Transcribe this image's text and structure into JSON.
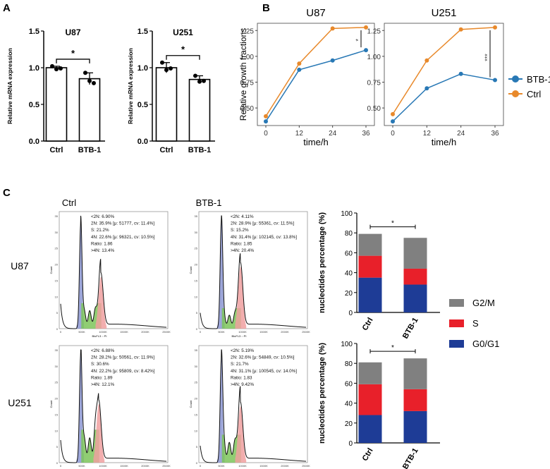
{
  "panel_labels": {
    "a": "A",
    "b": "B",
    "c": "C"
  },
  "colors": {
    "btb1_line": "#2878b5",
    "ctrl_line": "#e8892b",
    "g2m": "#808080",
    "s": "#e8202a",
    "g0g1": "#1e3c96",
    "hist_g1": "#8c96d2",
    "hist_s": "#7cc45a",
    "hist_g2": "#f0a0a0"
  },
  "panel_c_text": {
    "col_ctrl": "Ctrl",
    "col_btb1": "BTB-1",
    "row_u87": "U87",
    "row_u251": "U251",
    "hist_ylabel": "Count",
    "hist_xlabel": "BluFL3 :: PI",
    "hist_xticks": [
      "0",
      "500K",
      "1000K",
      "1500K",
      "2000K",
      "2500K"
    ],
    "hist_yticks": [
      "0",
      "5",
      "10",
      "15",
      "20",
      "25",
      "30",
      "35"
    ]
  },
  "chart_data": [
    {
      "id": "A_U87",
      "type": "bar",
      "title": "U87",
      "categories": [
        "Ctrl",
        "BTB-1"
      ],
      "values": [
        1.0,
        0.85
      ],
      "errors": [
        0.02,
        0.08
      ],
      "points": [
        [
          1.02,
          0.98,
          0.99
        ],
        [
          0.93,
          0.82,
          0.79
        ]
      ],
      "ylabel": "Relative mRNA expression",
      "ylim": [
        0,
        1.5
      ],
      "yticks": [
        "0.0",
        "0.5",
        "1.0",
        "1.5"
      ],
      "significance": "*"
    },
    {
      "id": "A_U251",
      "type": "bar",
      "title": "U251",
      "categories": [
        "Ctrl",
        "BTB-1"
      ],
      "values": [
        1.0,
        0.84
      ],
      "errors": [
        0.07,
        0.05
      ],
      "points": [
        [
          1.07,
          0.97,
          0.99
        ],
        [
          0.89,
          0.81,
          0.82
        ]
      ],
      "ylabel": "Relative mRNA expression",
      "ylim": [
        0,
        1.5
      ],
      "yticks": [
        "0.0",
        "0.5",
        "1.0",
        "1.5"
      ],
      "significance": "*"
    },
    {
      "id": "B_U87",
      "type": "line",
      "title": "U87",
      "x": [
        0,
        12,
        24,
        36
      ],
      "series": [
        {
          "name": "BTB-1",
          "values": [
            0.37,
            0.87,
            0.96,
            1.06
          ]
        },
        {
          "name": "Ctrl",
          "values": [
            0.42,
            0.93,
            1.27,
            1.28
          ]
        }
      ],
      "xlabel": "time/h",
      "ylabel": "Relative growth fractions",
      "ylim": [
        0.33,
        1.32
      ],
      "yticks": [
        "0.50",
        "0.75",
        "1.00",
        "1.25"
      ],
      "xticks": [
        "0",
        "12",
        "24",
        "36"
      ],
      "significance": "*"
    },
    {
      "id": "B_U251",
      "type": "line",
      "title": "U251",
      "x": [
        0,
        12,
        24,
        36
      ],
      "series": [
        {
          "name": "BTB-1",
          "values": [
            0.37,
            0.69,
            0.83,
            0.77
          ]
        },
        {
          "name": "Ctrl",
          "values": [
            0.44,
            0.96,
            1.26,
            1.28
          ]
        }
      ],
      "xlabel": "time/h",
      "ylabel": "",
      "ylim": [
        0.33,
        1.32
      ],
      "yticks": [
        "0.50",
        "0.75",
        "1.00",
        "1.25"
      ],
      "xticks": [
        "0",
        "12",
        "24",
        "36"
      ],
      "significance": "***",
      "legend": [
        "BTB-1",
        "Ctrl"
      ]
    },
    {
      "id": "C_hist_U87_Ctrl",
      "type": "histogram",
      "stats": [
        "<2N: 6.90%",
        "2N: 35.9%   [μ: 51777, cv: 11.4%]",
        "S: 21.2%",
        "4N: 22.6%   [μ: 96321, cv: 10.5%]",
        "Ratio: 1.86",
        ">4N: 13.4%"
      ]
    },
    {
      "id": "C_hist_U87_BTB1",
      "type": "histogram",
      "stats": [
        "<2N: 4.11%",
        "2N: 28.9%   [μ: 55361, cv: 11.5%]",
        "S: 15.2%",
        "4N: 31.4%   [μ: 102145, cv: 13.8%]",
        "Ratio: 1.85",
        ">4N: 20.4%"
      ]
    },
    {
      "id": "C_hist_U251_Ctrl",
      "type": "histogram",
      "stats": [
        "<2N: 6.88%",
        "2N: 28.2%   [μ: 50561, cv: 11.9%]",
        "S: 30.6%",
        "4N: 22.2%   [μ: 95809, cv: 8.42%]",
        "Ratio: 1.89",
        ">4N: 12.1%"
      ]
    },
    {
      "id": "C_hist_U251_BTB1",
      "type": "histogram",
      "stats": [
        "<2N: 5.19%",
        "2N: 32.6%   [μ: 54849, cv: 10.5%]",
        "S: 21.7%",
        "4N: 31.1%   [μ: 100545, cv: 14.0%]",
        "Ratio: 1.83",
        ">4N: 9.42%"
      ]
    },
    {
      "id": "C_bar_U87",
      "type": "bar",
      "categories": [
        "Ctrl",
        "BTB-1"
      ],
      "series": [
        {
          "name": "G0/G1",
          "values": [
            35,
            28
          ]
        },
        {
          "name": "S",
          "values": [
            22,
            16
          ]
        },
        {
          "name": "G2/M",
          "values": [
            22,
            31
          ]
        }
      ],
      "ylabel": "nucleotides percentage (%)",
      "ylim": [
        0,
        100
      ],
      "yticks": [
        "0",
        "20",
        "40",
        "60",
        "80",
        "100"
      ],
      "significance": "*"
    },
    {
      "id": "C_bar_U251",
      "type": "bar",
      "categories": [
        "Ctrl",
        "BTB-1"
      ],
      "series": [
        {
          "name": "G0/G1",
          "values": [
            28,
            32
          ]
        },
        {
          "name": "S",
          "values": [
            31,
            22
          ]
        },
        {
          "name": "G2/M",
          "values": [
            22,
            31
          ]
        }
      ],
      "ylabel": "nucleotides percentage (%)",
      "ylim": [
        0,
        100
      ],
      "yticks": [
        "0",
        "20",
        "40",
        "60",
        "80",
        "100"
      ],
      "significance": "*",
      "legend": [
        "G2/M",
        "S",
        "G0/G1"
      ]
    }
  ]
}
